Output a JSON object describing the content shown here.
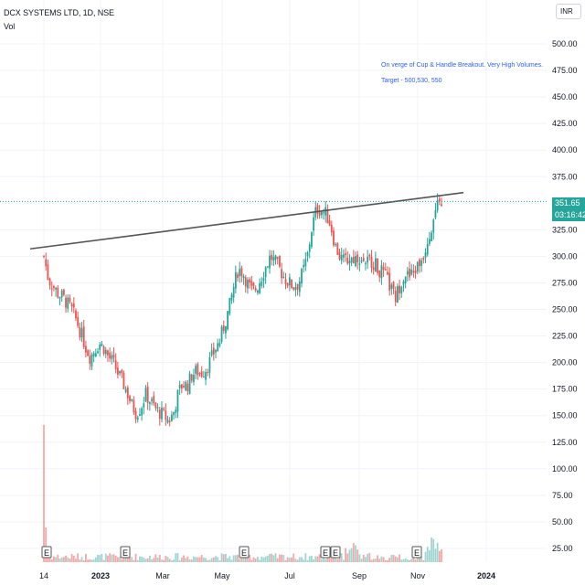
{
  "header": {
    "symbol_line": "DCX SYSTEMS LTD, 1D, NSE",
    "volume_label": "Vol",
    "currency": "INR"
  },
  "annotation": {
    "line1": "On verge of Cup & Handle Breakout. Very High Volumes.",
    "line2": "Target - 500,530, 550"
  },
  "last_price": {
    "price": "351.65",
    "countdown": "03:16:42"
  },
  "colors": {
    "up": "#26a69a",
    "down": "#ef5350",
    "trendline": "#555555",
    "annotation": "#2962ff",
    "price_line": "#26a69a"
  },
  "chart_data": {
    "type": "candlestick",
    "ylim": [
      20,
      510
    ],
    "y_ticks": [
      "500.00",
      "475.00",
      "450.00",
      "425.00",
      "400.00",
      "375.00",
      "350.00",
      "325.00",
      "300.00",
      "275.00",
      "250.00",
      "225.00",
      "200.00",
      "175.00",
      "150.00",
      "125.00",
      "100.00",
      "75.00",
      "50.00",
      "25.00"
    ],
    "x_tick_labels": [
      "14",
      "2023",
      "Mar",
      "May",
      "Jul",
      "Sep",
      "Nov",
      "2024"
    ],
    "close_series": [
      300,
      278,
      272,
      265,
      262,
      256,
      250,
      240,
      228,
      215,
      205,
      212,
      218,
      214,
      205,
      200,
      190,
      182,
      172,
      160,
      152,
      158,
      170,
      164,
      157,
      153,
      150,
      145,
      152,
      170,
      180,
      178,
      188,
      192,
      190,
      194,
      202,
      212,
      220,
      235,
      250,
      270,
      288,
      285,
      275,
      267,
      270,
      280,
      290,
      300,
      295,
      288,
      280,
      275,
      272,
      274,
      285,
      300,
      328,
      345,
      343,
      340,
      330,
      310,
      300,
      295,
      298,
      298,
      300,
      297,
      295,
      296,
      290,
      285,
      280,
      270,
      260,
      273,
      285,
      280,
      285,
      292,
      300,
      315,
      330,
      345,
      352
    ],
    "trendline": {
      "start_value": 307,
      "end_value": 360
    },
    "volume_note": "Very High Volumes",
    "earnings_markers": 6
  }
}
